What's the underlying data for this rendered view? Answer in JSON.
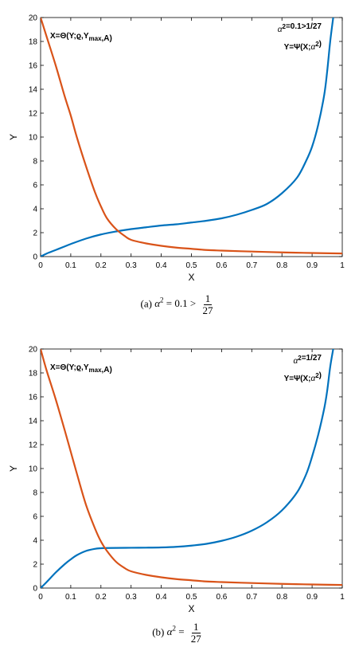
{
  "chart_data": [
    {
      "type": "line",
      "xlabel": "X",
      "ylabel": "Y",
      "xlim": [
        0,
        1
      ],
      "ylim": [
        0,
        20
      ],
      "xticks": [
        "0",
        "0.1",
        "0.2",
        "0.3",
        "0.4",
        "0.5",
        "0.6",
        "0.7",
        "0.8",
        "0.9",
        "1"
      ],
      "yticks": [
        "0",
        "2",
        "4",
        "6",
        "8",
        "10",
        "12",
        "14",
        "16",
        "18",
        "20"
      ],
      "annotation_left": "X=Θ(Y;ϱ,Ymax,A)",
      "annotation_right_1": "α2=0.1>1/27",
      "annotation_right_2": "Y=Ψ(X;α2)",
      "caption": {
        "label": "(a)",
        "expr": "α2 = 0.1 >",
        "num": "1",
        "den": "27"
      },
      "series": [
        {
          "color": "#0072BD",
          "x": [
            0,
            0.02,
            0.05,
            0.08,
            0.1,
            0.15,
            0.2,
            0.25,
            0.3,
            0.35,
            0.4,
            0.45,
            0.5,
            0.55,
            0.6,
            0.65,
            0.7,
            0.75,
            0.8,
            0.85,
            0.88,
            0.9,
            0.92,
            0.94,
            0.95,
            0.96,
            0.97
          ],
          "y": [
            0,
            0.25,
            0.55,
            0.85,
            1.05,
            1.5,
            1.85,
            2.1,
            2.3,
            2.45,
            2.6,
            2.7,
            2.85,
            3.0,
            3.2,
            3.5,
            3.9,
            4.4,
            5.3,
            6.6,
            8.0,
            9.2,
            11.0,
            13.5,
            15.5,
            18.0,
            20.0
          ]
        },
        {
          "color": "#D95319",
          "x": [
            0,
            0.02,
            0.05,
            0.08,
            0.1,
            0.12,
            0.15,
            0.18,
            0.2,
            0.22,
            0.25,
            0.28,
            0.3,
            0.35,
            0.4,
            0.45,
            0.5,
            0.55,
            0.6,
            0.7,
            0.8,
            0.9,
            1.0
          ],
          "y": [
            20,
            18.4,
            16.0,
            13.4,
            11.8,
            10.0,
            7.6,
            5.4,
            4.2,
            3.2,
            2.3,
            1.7,
            1.4,
            1.1,
            0.9,
            0.75,
            0.65,
            0.55,
            0.5,
            0.42,
            0.35,
            0.3,
            0.26
          ]
        }
      ]
    },
    {
      "type": "line",
      "xlabel": "X",
      "ylabel": "Y",
      "xlim": [
        0,
        1
      ],
      "ylim": [
        0,
        20
      ],
      "xticks": [
        "0",
        "0.1",
        "0.2",
        "0.3",
        "0.4",
        "0.5",
        "0.6",
        "0.7",
        "0.8",
        "0.9",
        "1"
      ],
      "yticks": [
        "0",
        "2",
        "4",
        "6",
        "8",
        "10",
        "12",
        "14",
        "16",
        "18",
        "20"
      ],
      "annotation_left": "X=Θ(Y;ϱ,Ymax,A)",
      "annotation_right_1": "α2=1/27",
      "annotation_right_2": "Y=Ψ(X;α2)",
      "caption": {
        "label": "(b)",
        "expr": "α2 =",
        "num": "1",
        "den": "27"
      },
      "series": [
        {
          "color": "#0072BD",
          "x": [
            0,
            0.02,
            0.05,
            0.08,
            0.1,
            0.12,
            0.15,
            0.18,
            0.2,
            0.22,
            0.25,
            0.3,
            0.35,
            0.4,
            0.45,
            0.5,
            0.55,
            0.6,
            0.65,
            0.7,
            0.75,
            0.8,
            0.85,
            0.88,
            0.9,
            0.92,
            0.94,
            0.95,
            0.96,
            0.97
          ],
          "y": [
            0,
            0.5,
            1.3,
            2.0,
            2.4,
            2.75,
            3.1,
            3.28,
            3.33,
            3.35,
            3.36,
            3.37,
            3.38,
            3.4,
            3.45,
            3.55,
            3.7,
            3.95,
            4.3,
            4.8,
            5.5,
            6.5,
            8.0,
            9.5,
            11.0,
            12.8,
            15.0,
            16.5,
            18.5,
            20.0
          ]
        },
        {
          "color": "#D95319",
          "x": [
            0,
            0.02,
            0.05,
            0.08,
            0.1,
            0.12,
            0.15,
            0.18,
            0.2,
            0.22,
            0.25,
            0.28,
            0.3,
            0.35,
            0.4,
            0.45,
            0.5,
            0.55,
            0.6,
            0.7,
            0.8,
            0.9,
            1.0
          ],
          "y": [
            20,
            18.2,
            15.8,
            13.2,
            11.4,
            9.6,
            7.0,
            5.0,
            3.9,
            3.1,
            2.2,
            1.65,
            1.4,
            1.1,
            0.9,
            0.75,
            0.65,
            0.55,
            0.5,
            0.42,
            0.35,
            0.3,
            0.26
          ]
        }
      ]
    }
  ]
}
